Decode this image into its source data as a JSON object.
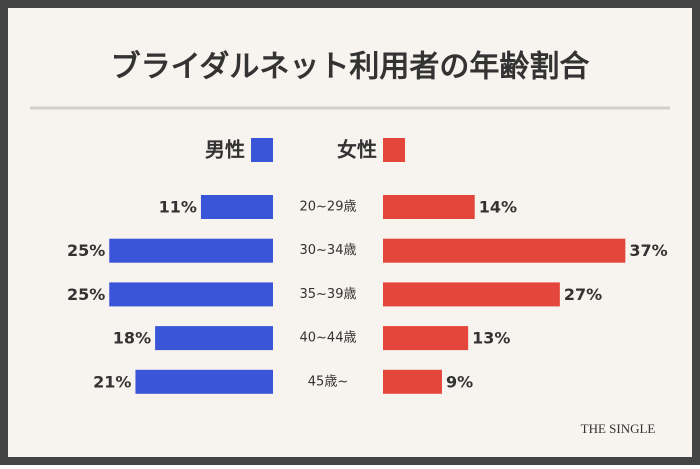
{
  "chart_data": {
    "type": "butterfly",
    "orientation": "horizontal",
    "title": "ブライダルネット利用者の年齢割合",
    "categories": [
      "20~29歳",
      "30~34歳",
      "35~39歳",
      "40~44歳",
      "45歳~"
    ],
    "xlim": [
      0,
      40
    ],
    "series": [
      {
        "name": "男性",
        "color": "#3b55d9",
        "values": [
          11,
          25,
          25,
          18,
          21
        ],
        "value_labels": [
          "11%",
          "25%",
          "25%",
          "18%",
          "21%"
        ]
      },
      {
        "name": "女性",
        "color": "#e5463b",
        "values": [
          14,
          37,
          27,
          13,
          9
        ],
        "value_labels": [
          "14%",
          "37%",
          "27%",
          "13%",
          "9%"
        ]
      }
    ]
  },
  "watermark": "THE SINGLE"
}
